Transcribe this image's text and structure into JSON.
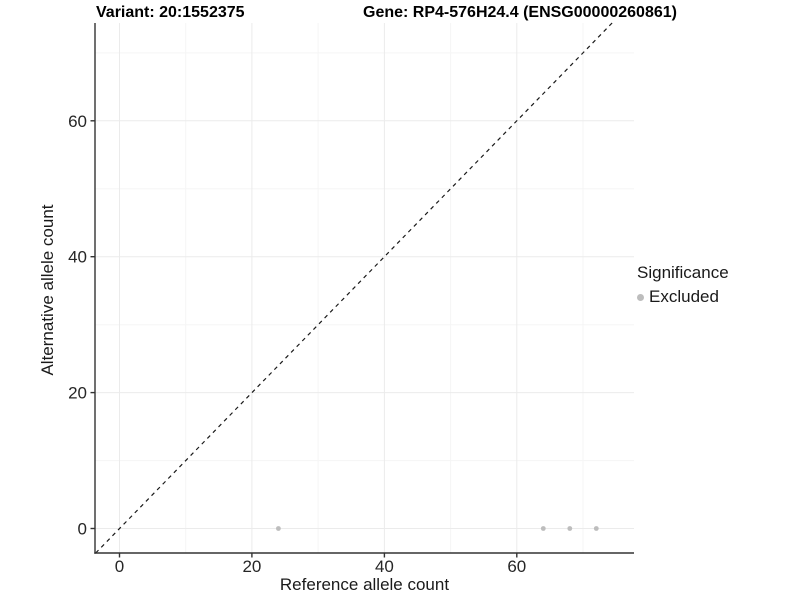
{
  "titles": {
    "variant": "Variant: 20:1552375",
    "gene": "Gene: RP4-576H24.4 (ENSG00000260861)"
  },
  "chart_data": {
    "type": "scatter",
    "xlabel": "Reference allele count",
    "ylabel": "Alternative allele count",
    "xlim": [
      -3.7,
      77.7
    ],
    "ylim": [
      -3.6,
      74.4
    ],
    "x_ticks": [
      0,
      20,
      40,
      60
    ],
    "y_ticks": [
      0,
      20,
      40,
      60
    ],
    "x_minor": [
      10,
      30,
      50,
      70
    ],
    "y_minor": [
      10,
      30,
      50,
      70
    ],
    "grid": {
      "major_color": "#ebebeb",
      "minor_color": "#f5f5f5",
      "on": true
    },
    "axis_color": "#333333",
    "identity_line": {
      "style": "dashed",
      "equation": "y = x",
      "color": "#1a1a1a"
    },
    "series": [
      {
        "name": "Excluded",
        "color": "#bdbdbd",
        "x": [
          24,
          64,
          68,
          72
        ],
        "y": [
          0,
          0,
          0,
          0
        ]
      }
    ],
    "legend": {
      "title": "Significance",
      "position": "right",
      "items": [
        {
          "label": "Excluded",
          "color": "#bdbdbd"
        }
      ]
    }
  }
}
